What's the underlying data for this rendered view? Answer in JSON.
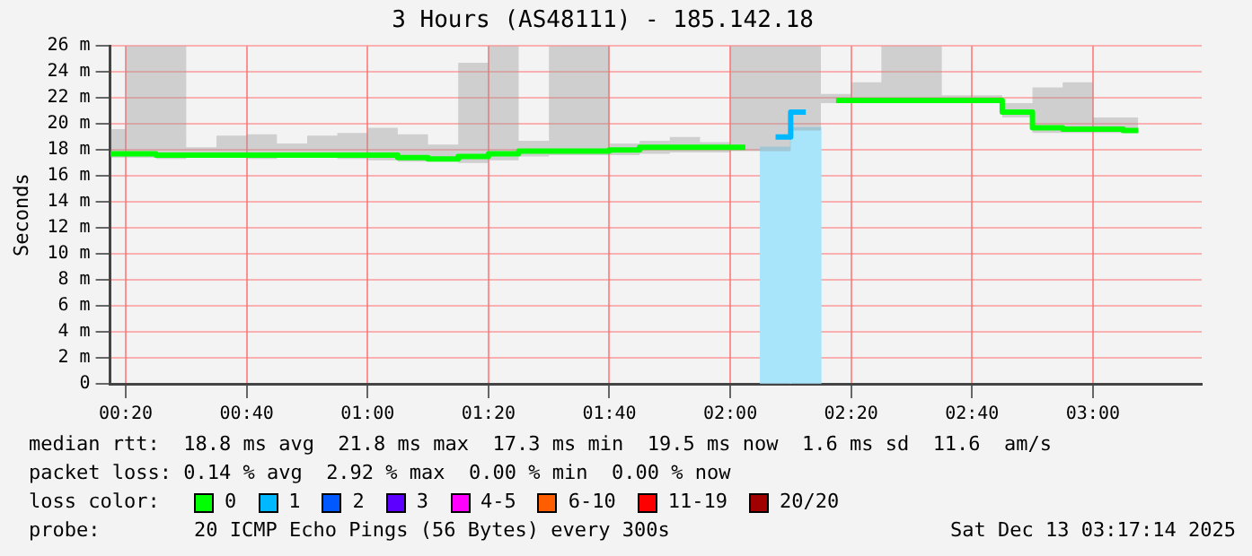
{
  "chart_data": {
    "type": "step",
    "title": "3 Hours (AS48111) - 185.142.18",
    "ylabel": "Seconds",
    "x": [
      0.2917,
      0.375,
      0.4583,
      0.5417,
      0.625,
      0.7083,
      0.7917,
      0.875,
      0.9583,
      1.0417,
      1.125,
      1.2083,
      1.2917,
      1.375,
      1.4583,
      1.5417,
      1.625,
      1.7083,
      1.7917,
      1.875,
      1.9583,
      2.0417,
      2.125,
      2.2083,
      2.2917,
      2.375,
      2.4583,
      2.5417,
      2.625,
      2.7083,
      2.7917,
      2.875,
      2.9583,
      3.0417,
      3.125
    ],
    "xlim": [
      0.29,
      3.3
    ],
    "xticks": [
      {
        "value": 0.3333,
        "label": "00:20"
      },
      {
        "value": 0.6667,
        "label": "00:40"
      },
      {
        "value": 1,
        "label": "01:00"
      },
      {
        "value": 1.3333,
        "label": "01:20"
      },
      {
        "value": 1.6667,
        "label": "01:40"
      },
      {
        "value": 2,
        "label": "02:00"
      },
      {
        "value": 2.3333,
        "label": "02:20"
      },
      {
        "value": 2.6667,
        "label": "02:40"
      },
      {
        "value": 3,
        "label": "03:00"
      }
    ],
    "ylim": [
      0,
      26
    ],
    "yticks": [
      0,
      {
        "value": 2,
        "label": "2 m"
      },
      {
        "value": 4,
        "label": "4 m"
      },
      {
        "value": 6,
        "label": "6 m"
      },
      {
        "value": 8,
        "label": "8 m"
      },
      {
        "value": 10,
        "label": "10 m"
      },
      {
        "value": 12,
        "label": "12 m"
      },
      {
        "value": 14,
        "label": "14 m"
      },
      {
        "value": 16,
        "label": "16 m"
      },
      {
        "value": 18,
        "label": "18 m"
      },
      {
        "value": 20,
        "label": "20 m"
      },
      {
        "value": 22,
        "label": "22 m"
      },
      {
        "value": 24,
        "label": "24 m"
      },
      {
        "value": 26,
        "label": "26 m"
      }
    ],
    "grid": true,
    "series": [
      {
        "type": "bar",
        "color": "#a8e4fa",
        "values": [
          null,
          null,
          null,
          null,
          null,
          null,
          null,
          null,
          null,
          null,
          null,
          null,
          null,
          null,
          null,
          null,
          null,
          null,
          null,
          null,
          null,
          null,
          18.2,
          19.7,
          null,
          null,
          null,
          null,
          null,
          null,
          null,
          null,
          null,
          null,
          null
        ]
      },
      {
        "color": "#00b8ff",
        "values": [
          null,
          null,
          null,
          null,
          null,
          null,
          null,
          null,
          null,
          null,
          null,
          null,
          null,
          null,
          null,
          null,
          null,
          null,
          null,
          null,
          null,
          null,
          19.0,
          20.9,
          null,
          null,
          null,
          null,
          null,
          null,
          null,
          null,
          null,
          null,
          null
        ]
      },
      {
        "color": "#00ff00",
        "values": [
          17.7,
          17.7,
          17.6,
          17.6,
          17.6,
          17.6,
          17.6,
          17.6,
          17.6,
          17.6,
          17.4,
          17.3,
          17.5,
          17.7,
          17.9,
          17.9,
          17.9,
          18.0,
          18.2,
          18.2,
          18.2,
          18.2,
          null,
          null,
          21.8,
          21.8,
          21.8,
          21.8,
          21.8,
          21.8,
          20.9,
          19.7,
          19.6,
          19.6,
          19.5
        ],
        "lower": [
          17.4,
          17.4,
          17.3,
          17.4,
          17.4,
          17.3,
          17.4,
          17.4,
          17.3,
          17.2,
          17.1,
          17.1,
          17.0,
          17.2,
          17.5,
          17.6,
          17.6,
          17.6,
          17.7,
          17.8,
          17.8,
          17.9,
          17.9,
          19.5,
          21.6,
          21.6,
          21.6,
          21.6,
          21.6,
          21.6,
          20.5,
          19.3,
          19.3,
          19.3,
          19.3
        ],
        "upper": [
          19.6,
          26,
          26,
          18.2,
          19.1,
          19.2,
          18.5,
          19.1,
          19.3,
          19.7,
          19.2,
          18.4,
          24.7,
          26,
          18.7,
          26,
          26,
          18.5,
          18.7,
          19.0,
          18.6,
          26,
          26,
          26,
          22.3,
          23.2,
          26,
          26,
          22.2,
          22.2,
          21.6,
          22.8,
          23.2,
          20.5,
          20.5
        ]
      }
    ],
    "annotations": [
      "median rtt:  18.8 ms avg  21.8 ms max  17.3 ms min  19.5 ms now  1.6 ms sd  11.6  am/s",
      "packet loss: 0.14 % avg  2.92 % max  0.00 % min  0.00 % now",
      "loss color:",
      "0",
      "1",
      "2",
      "3",
      "4-5",
      "6-10",
      "11-19",
      "20/20",
      "probe:",
      "20 ICMP Echo Pings (56 Bytes) every 300s",
      "Sat Dec 13 03:17:14 2025"
    ]
  }
}
